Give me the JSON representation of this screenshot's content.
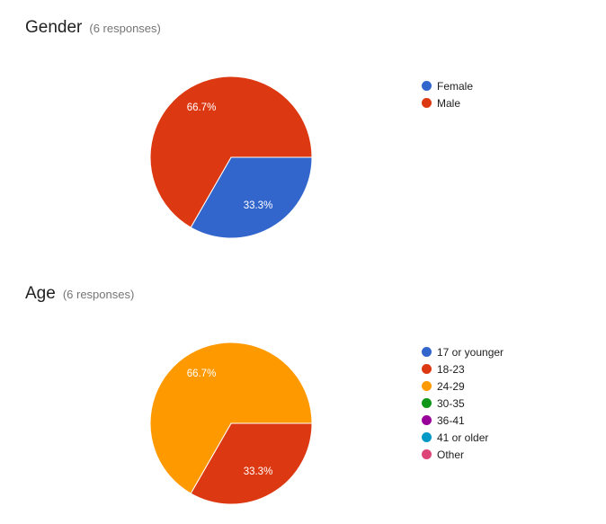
{
  "chart_data": [
    {
      "type": "pie",
      "title": "Gender",
      "subtitle": "(6 responses)",
      "legend_position": "right",
      "categories": [
        "Female",
        "Male"
      ],
      "values": [
        33.3,
        66.7
      ],
      "labels": [
        "33.3%",
        "66.7%"
      ],
      "colors": [
        "#3366cc",
        "#dc3912"
      ]
    },
    {
      "type": "pie",
      "title": "Age",
      "subtitle": "(6 responses)",
      "legend_position": "right",
      "categories": [
        "17 or younger",
        "18-23",
        "24-29",
        "30-35",
        "36-41",
        "41 or older",
        "Other"
      ],
      "values": [
        0,
        33.3,
        66.7,
        0,
        0,
        0,
        0
      ],
      "labels": [
        "",
        "33.3%",
        "66.7%",
        "",
        "",
        "",
        ""
      ],
      "colors": [
        "#3366cc",
        "#dc3912",
        "#ff9900",
        "#109618",
        "#990099",
        "#0099c6",
        "#dd4477"
      ]
    }
  ]
}
